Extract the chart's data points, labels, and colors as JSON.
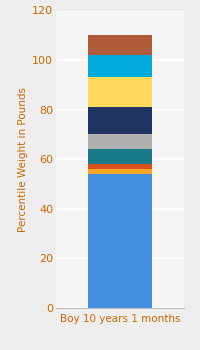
{
  "category": "Boy 10 years 1 months",
  "segments": [
    {
      "value": 54,
      "color": "#4490e0"
    },
    {
      "value": 2,
      "color": "#f5a623"
    },
    {
      "value": 2,
      "color": "#d94f1e"
    },
    {
      "value": 6,
      "color": "#1a7a8a"
    },
    {
      "value": 6,
      "color": "#b0b0b0"
    },
    {
      "value": 11,
      "color": "#1f3461"
    },
    {
      "value": 12,
      "color": "#fdd85a"
    },
    {
      "value": 9,
      "color": "#00aadd"
    },
    {
      "value": 8,
      "color": "#b05c3a"
    }
  ],
  "ylim": [
    0,
    120
  ],
  "yticks": [
    0,
    20,
    40,
    60,
    80,
    100,
    120
  ],
  "ylabel": "Percentile Weight in Pounds",
  "ylabel_color": "#cc6600",
  "tick_color": "#cc6600",
  "background_color": "#eeeeee",
  "plot_bg_color": "#f5f5f5",
  "grid_color": "#ffffff",
  "bar_width": 0.55
}
